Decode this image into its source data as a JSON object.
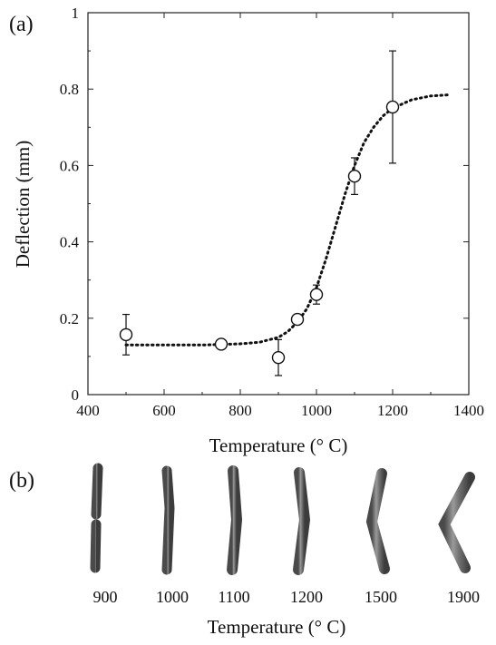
{
  "panel_a": {
    "label": "(a)"
  },
  "panel_b": {
    "label": "(b)"
  },
  "chart_data": {
    "type": "scatter",
    "title": "",
    "xlabel": "Temperature (° C)",
    "ylabel": "Deflection (mm)",
    "xlim": [
      400,
      1400
    ],
    "ylim": [
      0,
      1
    ],
    "xticks": [
      400,
      600,
      800,
      1000,
      1200,
      1400
    ],
    "yticks": [
      0,
      0.2,
      0.4,
      0.6,
      0.8,
      1
    ],
    "xtick_labels": [
      "400",
      "600",
      "800",
      "1000",
      "1200",
      "1400"
    ],
    "ytick_labels": [
      "0",
      "0.2",
      "0.4",
      "0.6",
      "0.8",
      "1"
    ],
    "grid": false,
    "marker": "open-circle",
    "points": [
      {
        "x": 500,
        "y": 0.157,
        "err": 0.053
      },
      {
        "x": 750,
        "y": 0.132,
        "err": 0
      },
      {
        "x": 900,
        "y": 0.097,
        "err": 0.047
      },
      {
        "x": 950,
        "y": 0.197,
        "err": 0
      },
      {
        "x": 1000,
        "y": 0.262,
        "err": 0.025
      },
      {
        "x": 1100,
        "y": 0.572,
        "err": 0.048
      },
      {
        "x": 1200,
        "y": 0.753,
        "err": 0.147
      }
    ],
    "fit_line": {
      "style": "dotted",
      "x": [
        500,
        600,
        700,
        800,
        850,
        900,
        925,
        950,
        975,
        1000,
        1025,
        1050,
        1075,
        1100,
        1125,
        1150,
        1175,
        1200,
        1250,
        1300,
        1350
      ],
      "y": [
        0.13,
        0.13,
        0.13,
        0.133,
        0.137,
        0.15,
        0.165,
        0.19,
        0.225,
        0.28,
        0.355,
        0.44,
        0.525,
        0.6,
        0.66,
        0.7,
        0.73,
        0.75,
        0.772,
        0.782,
        0.785
      ]
    }
  },
  "photo_panel": {
    "temperatures": [
      "900",
      "1000",
      "1100",
      "1200",
      "1500",
      "1900"
    ],
    "xlabel": "Temperature (° C)"
  }
}
